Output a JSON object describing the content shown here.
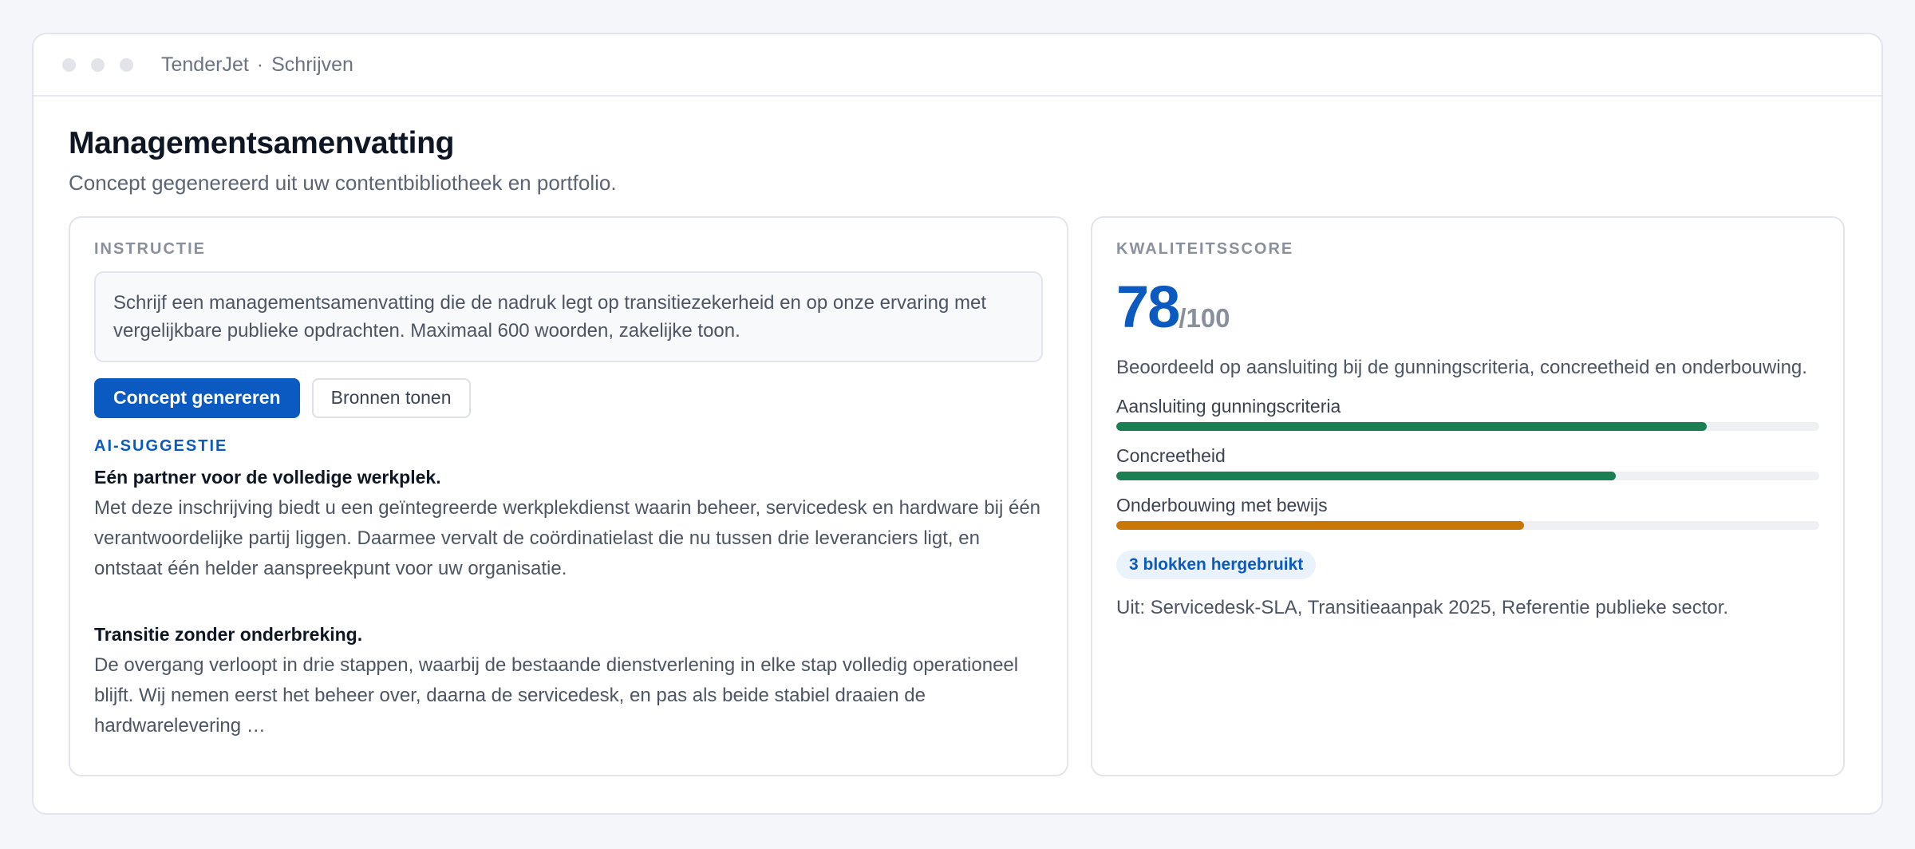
{
  "window": {
    "app_name": "TenderJet",
    "separator": "·",
    "section": "Schrijven"
  },
  "page": {
    "title": "Managementsamenvatting",
    "subtitle": "Concept gegenereerd uit uw contentbibliotheek en portfolio."
  },
  "instruction": {
    "label": "INSTRUCTIE",
    "text": "Schrijf een managementsamenvatting die de nadruk legt op transitiezekerheid en op onze ervaring met vergelijkbare publieke opdrachten. Maximaal 600 woorden, zakelijke toon."
  },
  "actions": {
    "generate_label": "Concept genereren",
    "sources_label": "Bronnen tonen"
  },
  "suggestion": {
    "label": "AI-SUGGESTIE",
    "paragraphs": [
      {
        "heading": "Eén partner voor de volledige werkplek.",
        "body": "Met deze inschrijving biedt u een geïntegreerde werkplekdienst waarin beheer, servicedesk en hardware bij één verantwoordelijke partij liggen. Daarmee vervalt de coördinatielast die nu tussen drie leveranciers ligt, en ontstaat één helder aanspreekpunt voor uw organisatie."
      },
      {
        "heading": "Transitie zonder onderbreking.",
        "body": "De overgang verloopt in drie stappen, waarbij de bestaande dienstverlening in elke stap volledig operationeel blijft. Wij nemen eerst het beheer over, daarna de servicedesk, en pas als beide stabiel draaien de hardwarelevering …"
      }
    ]
  },
  "quality": {
    "label": "KWALITEITSSCORE",
    "score": "78",
    "max": "/100",
    "description": "Beoordeeld op aansluiting bij de gunningscriteria, concreetheid en onderbouwing.",
    "metrics": [
      {
        "label": "Aansluiting gunningscriteria",
        "value": 0.84,
        "color": "#1a7f52"
      },
      {
        "label": "Concreetheid",
        "value": 0.71,
        "color": "#1a7f52"
      },
      {
        "label": "Onderbouwing met bewijs",
        "value": 0.58,
        "color": "#c97808"
      }
    ],
    "reuse_badge": "3 blokken hergebruikt",
    "sources_text": "Uit: Servicedesk-SLA, Transitieaanpak 2025, Referentie publieke sector."
  },
  "colors": {
    "accent": "#0b5ac2",
    "success": "#1a7f52",
    "warning": "#c97808"
  }
}
